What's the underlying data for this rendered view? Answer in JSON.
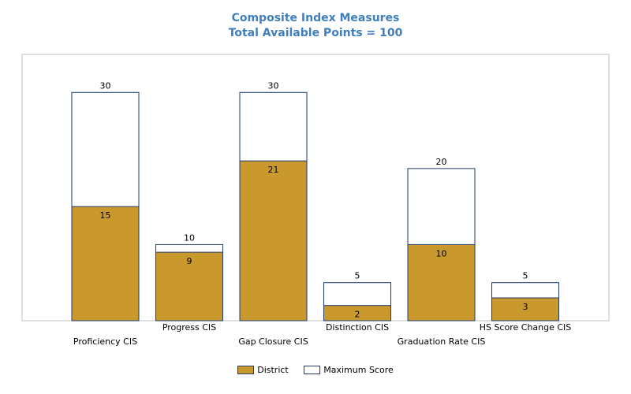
{
  "chart_data": {
    "type": "bar",
    "title": "Composite Index Measures",
    "subtitle": "Total Available Points = 100",
    "categories": [
      "Proficiency CIS",
      "Progress CIS",
      "Gap Closure CIS",
      "Distinction CIS",
      "Graduation Rate CIS",
      "HS Score Change CIS"
    ],
    "series": [
      {
        "name": "District",
        "values": [
          15,
          9,
          21,
          2,
          10,
          3
        ],
        "color": "#c9992e"
      },
      {
        "name": "Maximum Score",
        "values": [
          30,
          10,
          30,
          5,
          20,
          5
        ],
        "color": "#ffffff",
        "border": "#1f3a6b"
      }
    ],
    "ylim": [
      0,
      35
    ],
    "grid": false,
    "legend_position": "bottom"
  }
}
